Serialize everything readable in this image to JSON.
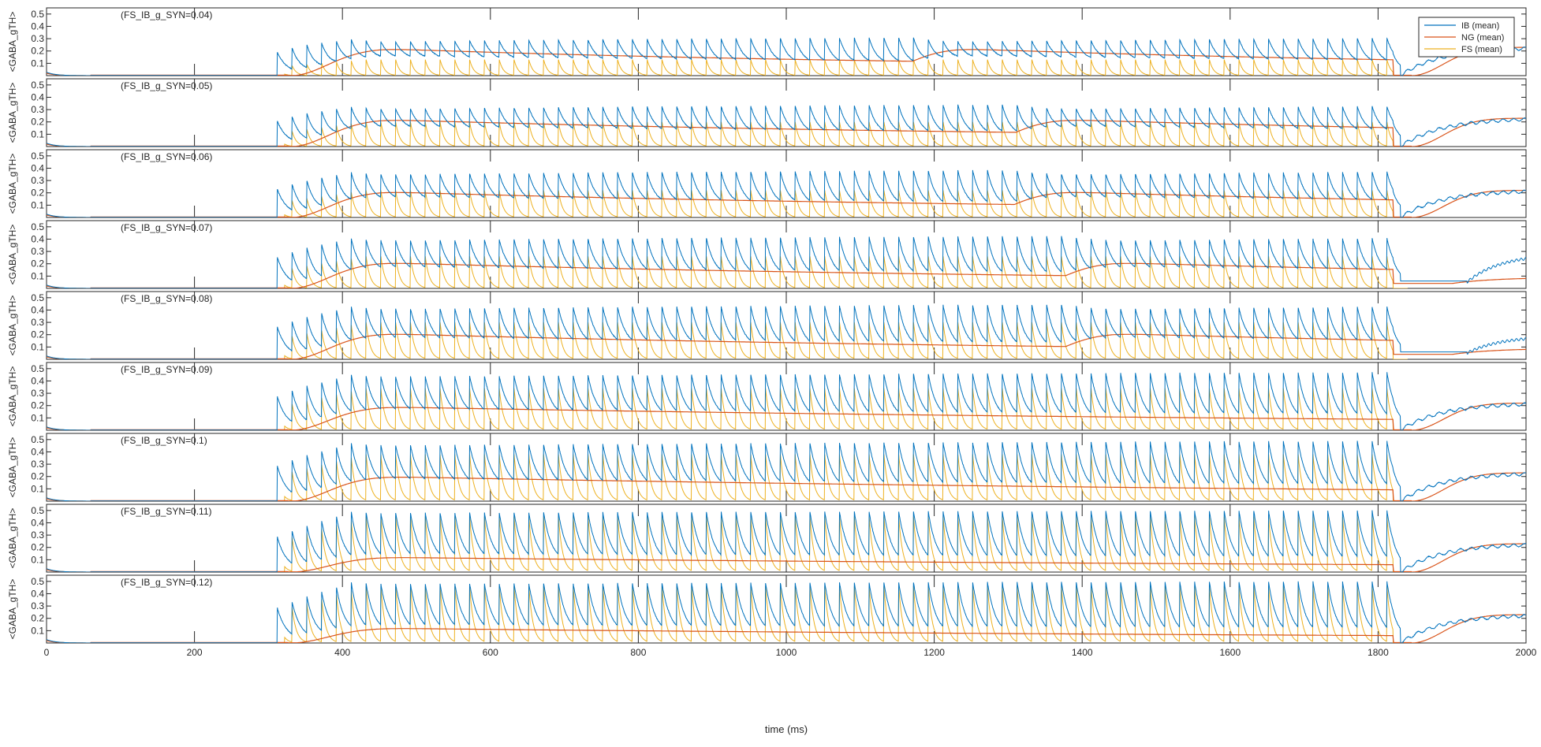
{
  "chart_data": {
    "type": "line",
    "xlabel": "time (ms)",
    "ylabel": "<GABA_gTH>",
    "xlim": [
      0,
      2000
    ],
    "ylim": [
      0,
      0.55
    ],
    "xticks": [
      0,
      200,
      400,
      600,
      800,
      1000,
      1200,
      1400,
      1600,
      1800,
      2000
    ],
    "yticks": [
      0.1,
      0.2,
      0.3,
      0.4,
      0.5
    ],
    "legend": {
      "location": "top-right",
      "entries": [
        "IB (mean)",
        "NG (mean)",
        "FS (mean)"
      ]
    },
    "series_colors": {
      "IB (mean)": "#0072bd",
      "NG (mean)": "#d95319",
      "FS (mean)": "#edb120"
    },
    "panels": [
      {
        "label": "(FS_IB_g_SYN=0.04)",
        "fs_period_ms": 20,
        "fs_peak": 0.13,
        "ib_peak": 0.35,
        "ng_max": 0.22,
        "ng_min": 0.05,
        "wave_starts": [
          330,
          1110
        ],
        "ng_wave_ms": 770,
        "ib_end_state": "rising",
        "ib_tail_level": 0.23
      },
      {
        "label": "(FS_IB_g_SYN=0.05)",
        "fs_period_ms": 20,
        "fs_peak": 0.2,
        "ib_peak": 0.38,
        "ng_max": 0.22,
        "ng_min": 0.05,
        "wave_starts": [
          330,
          1250
        ],
        "ng_wave_ms": 900,
        "ib_end_state": "oscillating",
        "ib_tail_level": 0.23
      },
      {
        "label": "(FS_IB_g_SYN=0.06)",
        "fs_period_ms": 20,
        "fs_peak": 0.22,
        "ib_peak": 0.42,
        "ng_max": 0.21,
        "ng_min": 0.04,
        "wave_starts": [
          330,
          1250
        ],
        "ng_wave_ms": 900,
        "ib_end_state": "oscillating",
        "ib_tail_level": 0.22
      },
      {
        "label": "(FS_IB_g_SYN=0.07)",
        "fs_period_ms": 20,
        "fs_peak": 0.26,
        "ib_peak": 0.46,
        "ng_max": 0.21,
        "ng_min": 0.04,
        "wave_starts": [
          330,
          1320
        ],
        "ng_wave_ms": 950,
        "ib_end_state": "late_rise",
        "ib_tail_level": 0.28
      },
      {
        "label": "(FS_IB_g_SYN=0.08)",
        "fs_period_ms": 20,
        "fs_peak": 0.3,
        "ib_peak": 0.48,
        "ng_max": 0.21,
        "ng_min": 0.04,
        "wave_starts": [
          330,
          1320
        ],
        "ng_wave_ms": 950,
        "ib_end_state": "late_rise",
        "ib_tail_level": 0.19
      },
      {
        "label": "(FS_IB_g_SYN=0.09)",
        "fs_period_ms": 20,
        "fs_peak": 0.34,
        "ib_peak": 0.5,
        "ng_max": 0.19,
        "ng_min": 0.02,
        "wave_starts": [
          330
        ],
        "ng_wave_ms": 1500,
        "ib_end_state": "oscillating",
        "ib_tail_level": 0.22
      },
      {
        "label": "(FS_IB_g_SYN=0.1)",
        "fs_period_ms": 20,
        "fs_peak": 0.38,
        "ib_peak": 0.52,
        "ng_max": 0.2,
        "ng_min": 0.02,
        "wave_starts": [
          330
        ],
        "ng_wave_ms": 1500,
        "ib_end_state": "oscillating",
        "ib_tail_level": 0.23
      },
      {
        "label": "(FS_IB_g_SYN=0.11)",
        "fs_period_ms": 20,
        "fs_peak": 0.45,
        "ib_peak": 0.52,
        "ng_max": 0.12,
        "ng_min": 0.02,
        "wave_starts": [
          330
        ],
        "ng_wave_ms": 1500,
        "ib_end_state": "oscillating",
        "ib_tail_level": 0.23
      },
      {
        "label": "(FS_IB_g_SYN=0.12)",
        "fs_period_ms": 20,
        "fs_peak": 0.46,
        "ib_peak": 0.52,
        "ng_max": 0.12,
        "ng_min": 0.02,
        "wave_starts": [
          330
        ],
        "ng_wave_ms": 1500,
        "ib_end_state": "oscillating",
        "ib_tail_level": 0.23
      }
    ]
  }
}
